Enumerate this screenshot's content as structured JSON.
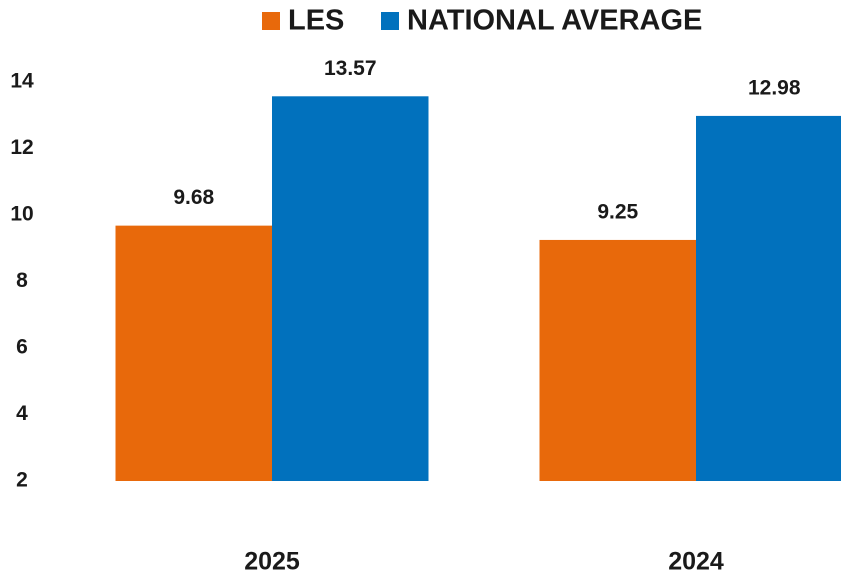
{
  "chart_data": {
    "type": "bar",
    "categories": [
      "2025",
      "2024"
    ],
    "series": [
      {
        "name": "LES",
        "color": "#e8690b",
        "values": [
          9.68,
          9.25
        ]
      },
      {
        "name": "NATIONAL AVERAGE",
        "color": "#0171bd",
        "values": [
          13.57,
          12.98
        ]
      }
    ],
    "ylim": [
      2,
      14
    ],
    "yticks": [
      2,
      4,
      6,
      8,
      10,
      12,
      14
    ],
    "grid": false,
    "legend": "top"
  }
}
